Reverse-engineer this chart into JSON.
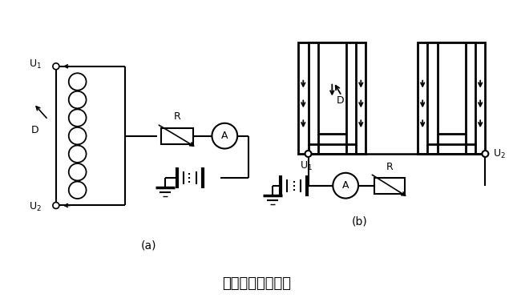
{
  "title": "磁针法通电示意图",
  "bg": "#ffffff",
  "lc": "#000000",
  "label_a": "(a)",
  "label_b": "(b)"
}
